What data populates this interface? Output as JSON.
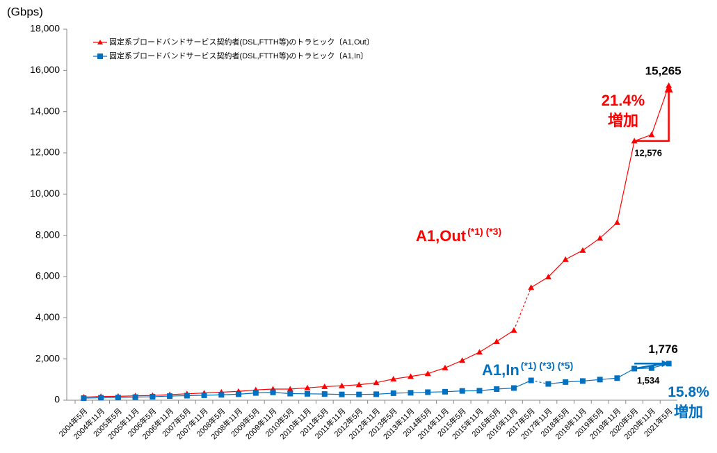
{
  "chart_data": {
    "type": "line",
    "ylabel": "(Gbps)",
    "categories": [
      "2004年5月",
      "2004年11月",
      "2005年5月",
      "2005年11月",
      "2006年5月",
      "2006年11月",
      "2007年5月",
      "2007年11月",
      "2008年5月",
      "2008年11月",
      "2009年5月",
      "2009年11月",
      "2010年5月",
      "2010年11月",
      "2011年5月",
      "2011年11月",
      "2012年5月",
      "2012年11月",
      "2013年5月",
      "2013年11月",
      "2014年5月",
      "2014年11月",
      "2015年5月",
      "2015年11月",
      "2016年5月",
      "2016年11月",
      "2017年5月",
      "2017年11月",
      "2018年5月",
      "2018年11月",
      "2019年5月",
      "2019年11月",
      "2020年5月",
      "2020年11月",
      "2021年5月"
    ],
    "series": [
      {
        "name": "固定系ブロードバンドサービス契約者(DSL,FTTH等)のトラヒック〔A1,Out〕",
        "color": "#ff0000",
        "marker": "triangle",
        "dashed_from": 25,
        "values": [
          150,
          180,
          190,
          210,
          230,
          270,
          310,
          350,
          390,
          430,
          500,
          540,
          540,
          600,
          660,
          700,
          750,
          850,
          1030,
          1150,
          1290,
          1570,
          1930,
          2330,
          2850,
          3390,
          5470,
          5980,
          6830,
          7270,
          7860,
          8620,
          12576,
          12880,
          15265
        ],
        "value_labels": [
          null,
          null,
          null,
          null,
          null,
          null,
          null,
          null,
          null,
          null,
          null,
          null,
          null,
          null,
          null,
          null,
          null,
          null,
          null,
          null,
          null,
          null,
          null,
          null,
          null,
          null,
          null,
          null,
          null,
          null,
          null,
          null,
          "12,576",
          null,
          "15,265"
        ]
      },
      {
        "name": "固定系ブロードバンドサービス契約者(DSL,FTTH等)のトラヒック〔A1,In〕",
        "color": "#0070c0",
        "marker": "square",
        "dashed_from": 26,
        "values": [
          100,
          120,
          130,
          150,
          170,
          200,
          220,
          240,
          260,
          290,
          350,
          380,
          320,
          310,
          300,
          280,
          280,
          290,
          340,
          360,
          390,
          410,
          450,
          460,
          540,
          590,
          960,
          790,
          880,
          930,
          1000,
          1070,
          1534,
          1560,
          1776
        ],
        "value_labels": [
          null,
          null,
          null,
          null,
          null,
          null,
          null,
          null,
          null,
          null,
          null,
          null,
          null,
          null,
          null,
          null,
          null,
          null,
          null,
          null,
          null,
          null,
          null,
          null,
          null,
          null,
          null,
          null,
          null,
          null,
          null,
          null,
          "1,534",
          null,
          "1,776"
        ]
      }
    ],
    "ylim": [
      0,
      18000
    ],
    "yticks": [
      0,
      {
        "value": 2000,
        "label": "2,000"
      },
      {
        "value": 4000,
        "label": "4,000"
      },
      {
        "value": 6000,
        "label": "6,000"
      },
      {
        "value": 8000,
        "label": "8,000"
      },
      {
        "value": 10000,
        "label": "10,000"
      },
      {
        "value": 12000,
        "label": "12,000"
      },
      {
        "value": 14000,
        "label": "14,000"
      },
      {
        "value": 16000,
        "label": "16,000"
      },
      {
        "value": 18000,
        "label": "18,000"
      }
    ],
    "legend": "upper left",
    "annotations": [
      {
        "text": "21.4%",
        "color": "#ff0000"
      },
      {
        "text": "増加",
        "color": "#ff0000"
      },
      {
        "text": "15.8%",
        "color": "#0070c0"
      },
      {
        "text": "増加",
        "color": "#0070c0"
      },
      {
        "text": "A1,Out",
        "sup": "(*1) (*3)",
        "color": "#ff0000"
      },
      {
        "text": "A1,In",
        "sup": "(*1) (*3) (*5)",
        "color": "#0070c0"
      }
    ]
  }
}
